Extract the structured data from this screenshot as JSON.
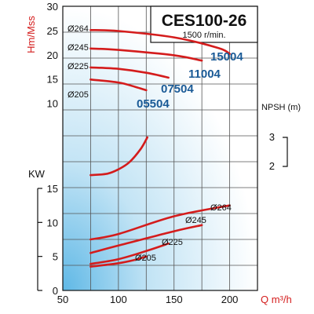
{
  "chart_data": {
    "type": "line",
    "title": "CES100-26",
    "subtitle": "1500 r/min.",
    "xlabel": "Q m³/h",
    "xlim": [
      50,
      225
    ],
    "x_ticks": [
      "50",
      "100",
      "150",
      "200"
    ],
    "grid": true,
    "colors": {
      "curve": "#d41c1c",
      "model": "#1a5a96",
      "axis_red": "#d41c1c",
      "grid": "#555555"
    },
    "head": {
      "ylabel": "Hm/Mss",
      "ylim": [
        8,
        30
      ],
      "y_ticks": [
        "10",
        "15",
        "20",
        "25",
        "30"
      ],
      "series": [
        {
          "name": "Ø264",
          "model": "15004",
          "x": [
            75,
            100,
            150,
            190,
            200
          ],
          "y": [
            25.1,
            24.9,
            23.6,
            21.4,
            20.2
          ]
        },
        {
          "name": "Ø245",
          "model": "11004",
          "x": [
            75,
            100,
            150,
            175
          ],
          "y": [
            21.3,
            21.0,
            19.9,
            18.8
          ]
        },
        {
          "name": "Ø225",
          "model": "07504",
          "x": [
            75,
            100,
            125,
            145
          ],
          "y": [
            17.4,
            17.1,
            16.3,
            15.3
          ]
        },
        {
          "name": "Ø205",
          "model": "05504",
          "x": [
            75,
            100,
            115,
            125
          ],
          "y": [
            14.9,
            14.3,
            13.4,
            12.7
          ]
        }
      ]
    },
    "npsh": {
      "ylabel": "NPSH (m)",
      "y_ticks": [
        "2",
        "3"
      ],
      "x": [
        75,
        90,
        100,
        110,
        120,
        126
      ],
      "y": [
        1.7,
        1.75,
        1.9,
        2.15,
        2.6,
        3.0
      ]
    },
    "power": {
      "ylabel": "KW",
      "ylim": [
        0,
        15
      ],
      "y_ticks": [
        "0",
        "5",
        "10",
        "15"
      ],
      "series": [
        {
          "name": "Ø264",
          "x": [
            75,
            100,
            150,
            200
          ],
          "y": [
            7.5,
            8.3,
            10.9,
            12.5
          ]
        },
        {
          "name": "Ø245",
          "x": [
            75,
            100,
            150,
            175
          ],
          "y": [
            5.5,
            6.6,
            8.7,
            9.6
          ]
        },
        {
          "name": "Ø225",
          "x": [
            75,
            100,
            125,
            145
          ],
          "y": [
            3.9,
            4.6,
            5.8,
            6.9
          ]
        },
        {
          "name": "Ø205",
          "x": [
            75,
            100,
            115,
            125
          ],
          "y": [
            3.5,
            4.0,
            4.5,
            5.0
          ]
        }
      ]
    }
  }
}
